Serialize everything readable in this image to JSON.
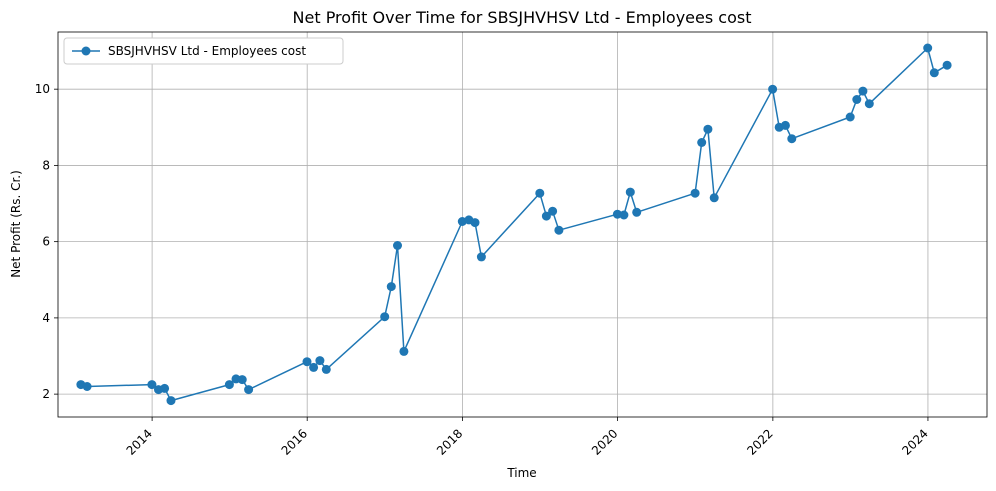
{
  "chart_data": {
    "type": "line",
    "title": "Net Profit Over Time for SBSJHVHSV Ltd - Employees cost",
    "xlabel": "Time",
    "ylabel": "Net Profit (Rs. Cr.)",
    "x_ticks": [
      "2014",
      "2016",
      "2018",
      "2020",
      "2022",
      "2024"
    ],
    "y_ticks": [
      "2",
      "4",
      "6",
      "8",
      "10"
    ],
    "xlim": [
      "2012-10-15",
      "2024-10-05"
    ],
    "ylim": [
      1.4,
      11.5
    ],
    "grid": true,
    "legend_position": "upper-left",
    "colors": {
      "series": "#1f77b4"
    },
    "series": [
      {
        "name": "SBSJHVHSV Ltd - Employees cost",
        "points": [
          [
            "2013-01-31",
            2.25
          ],
          [
            "2013-03-01",
            2.2
          ],
          [
            "2013-12-31",
            2.25
          ],
          [
            "2014-01-31",
            2.12
          ],
          [
            "2014-03-01",
            2.15
          ],
          [
            "2014-03-31",
            1.83
          ],
          [
            "2014-12-31",
            2.25
          ],
          [
            "2015-01-31",
            2.4
          ],
          [
            "2015-03-01",
            2.38
          ],
          [
            "2015-03-31",
            2.12
          ],
          [
            "2015-12-31",
            2.85
          ],
          [
            "2016-01-31",
            2.7
          ],
          [
            "2016-03-01",
            2.88
          ],
          [
            "2016-03-31",
            2.65
          ],
          [
            "2016-12-31",
            4.03
          ],
          [
            "2017-01-31",
            4.82
          ],
          [
            "2017-03-01",
            5.9
          ],
          [
            "2017-03-31",
            3.12
          ],
          [
            "2017-12-31",
            6.53
          ],
          [
            "2018-01-31",
            6.57
          ],
          [
            "2018-03-01",
            6.5
          ],
          [
            "2018-03-31",
            5.6
          ],
          [
            "2018-12-31",
            7.27
          ],
          [
            "2019-01-31",
            6.67
          ],
          [
            "2019-03-01",
            6.8
          ],
          [
            "2019-03-31",
            6.3
          ],
          [
            "2019-12-31",
            6.72
          ],
          [
            "2020-01-31",
            6.7
          ],
          [
            "2020-03-01",
            7.3
          ],
          [
            "2020-03-31",
            6.77
          ],
          [
            "2020-12-31",
            7.27
          ],
          [
            "2021-01-31",
            8.6
          ],
          [
            "2021-03-01",
            8.95
          ],
          [
            "2021-03-31",
            7.15
          ],
          [
            "2021-12-31",
            10.0
          ],
          [
            "2022-01-31",
            9.0
          ],
          [
            "2022-03-01",
            9.05
          ],
          [
            "2022-03-31",
            8.7
          ],
          [
            "2022-12-31",
            9.27
          ],
          [
            "2023-01-31",
            9.73
          ],
          [
            "2023-03-01",
            9.95
          ],
          [
            "2023-03-31",
            9.62
          ],
          [
            "2023-12-31",
            11.08
          ],
          [
            "2024-01-31",
            10.43
          ],
          [
            "2024-03-31",
            10.63
          ]
        ]
      }
    ]
  }
}
